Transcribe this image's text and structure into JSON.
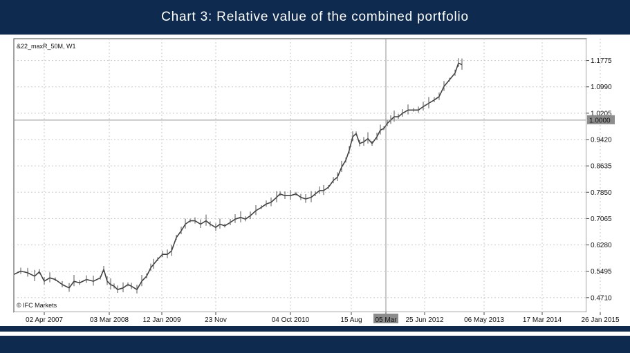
{
  "header": {
    "title": "Chart 3: Relative value of the combined portfolio"
  },
  "chart_data": {
    "type": "line",
    "title": "Chart 3: Relative value of the combined portfolio",
    "symbol_label": "&22_maxR_50M, W1",
    "watermark": "© IFC Markets",
    "ylim": [
      0.4275,
      1.2425
    ],
    "y_ticks": [
      0.471,
      0.5495,
      0.628,
      0.7065,
      0.785,
      0.8635,
      0.942,
      1.0205,
      1.099,
      1.1775
    ],
    "y_tick_labels": [
      "0.4710",
      "0.5495",
      "0.6280",
      "0.7065",
      "0.7850",
      "0.8635",
      "0.9420",
      "1.0205",
      "1.0990",
      "1.1775"
    ],
    "x_tick_labels": [
      "02 Apr 2007",
      "03 Mar 2008",
      "12 Jan 2009",
      "23 Nov",
      "04 Oct 2010",
      "15 Aug",
      "05 Mar",
      "25 Jun 2012",
      "06 May 2013",
      "17 Mar 2014",
      "26 Jan 2015"
    ],
    "x_tick_index": [
      64,
      158,
      234,
      312,
      420,
      508,
      558,
      614,
      700,
      784,
      868
    ],
    "crosshair": {
      "value": 1.0,
      "label": "1.0000",
      "date_label": "05 Mar",
      "index": 558
    },
    "x_range_index": [
      20,
      848
    ],
    "series": [
      {
        "name": "&22_maxR_50M, W1",
        "x": [
          20,
          30,
          40,
          50,
          57,
          64,
          72,
          80,
          90,
          100,
          107,
          115,
          125,
          135,
          145,
          150,
          155,
          160,
          165,
          170,
          178,
          185,
          190,
          198,
          205,
          212,
          218,
          222,
          228,
          235,
          242,
          248,
          255,
          262,
          268,
          275,
          282,
          290,
          298,
          304,
          312,
          318,
          325,
          333,
          340,
          348,
          355,
          362,
          370,
          378,
          385,
          392,
          400,
          405,
          412,
          420,
          428,
          435,
          442,
          450,
          456,
          462,
          468,
          475,
          482,
          488,
          494,
          500,
          505,
          510,
          515,
          520,
          526,
          532,
          538,
          545,
          550,
          555,
          560,
          565,
          570,
          576,
          582,
          590,
          598,
          605,
          612,
          620,
          628,
          635,
          642,
          650,
          658,
          663,
          668
        ],
        "values": [
          0.54,
          0.55,
          0.545,
          0.535,
          0.548,
          0.52,
          0.53,
          0.525,
          0.51,
          0.5,
          0.52,
          0.515,
          0.525,
          0.52,
          0.53,
          0.555,
          0.52,
          0.51,
          0.505,
          0.495,
          0.5,
          0.51,
          0.505,
          0.495,
          0.52,
          0.535,
          0.56,
          0.57,
          0.585,
          0.6,
          0.6,
          0.61,
          0.65,
          0.67,
          0.69,
          0.7,
          0.7,
          0.69,
          0.7,
          0.69,
          0.68,
          0.69,
          0.685,
          0.695,
          0.705,
          0.71,
          0.705,
          0.715,
          0.73,
          0.74,
          0.75,
          0.755,
          0.77,
          0.78,
          0.775,
          0.775,
          0.78,
          0.77,
          0.765,
          0.77,
          0.78,
          0.79,
          0.79,
          0.8,
          0.82,
          0.83,
          0.86,
          0.88,
          0.91,
          0.95,
          0.96,
          0.93,
          0.935,
          0.945,
          0.93,
          0.95,
          0.97,
          0.975,
          0.99,
          1.0,
          1.01,
          1.01,
          1.02,
          1.03,
          1.03,
          1.03,
          1.04,
          1.05,
          1.06,
          1.07,
          1.1,
          1.12,
          1.14,
          1.17,
          1.165
        ]
      }
    ]
  }
}
